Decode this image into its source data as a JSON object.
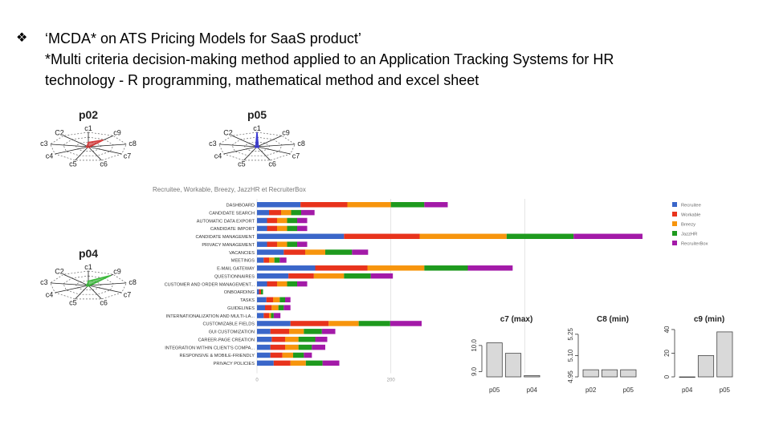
{
  "slide": {
    "bullet": "❖",
    "title_line": "‘MCDA* on ATS Pricing Models for SaaS product’",
    "note_line1": "*Multi criteria decision-making method applied to an Application Tracking Systems for HR",
    "note_line2": "technology - R programming, mathematical method and excel sheet"
  },
  "colors": {
    "Recruitee": "#3a66c9",
    "Workable": "#e8331c",
    "Breezy": "#f7950d",
    "JazzHR": "#1e9a1e",
    "RecruiterBox": "#a31aa8"
  },
  "chart_data": [
    {
      "type": "radar",
      "title": "p02",
      "axes": [
        "c1",
        "c9",
        "c8",
        "c7",
        "c6",
        "c5",
        "c4",
        "c3",
        "c2"
      ],
      "axis_label_text": [
        "c1",
        "c9",
        "c8",
        "c7",
        "c6",
        "c5",
        "c4",
        "c3",
        "C2"
      ],
      "values": [
        0.3,
        0.6,
        0.05,
        0.05,
        0.05,
        0.05,
        0.05,
        0.05,
        0.05
      ],
      "color": "#d43a3a"
    },
    {
      "type": "radar",
      "title": "p05",
      "axes": [
        "c1",
        "c9",
        "c8",
        "c7",
        "c6",
        "c5",
        "c4",
        "c3",
        "c2"
      ],
      "axis_label_text": [
        "c1",
        "c9",
        "c8",
        "c7",
        "c6",
        "c5",
        "c4",
        "c3",
        "C2"
      ],
      "values": [
        1.0,
        0.05,
        0.05,
        0.05,
        0.05,
        0.05,
        0.05,
        0.05,
        0.05
      ],
      "color": "#3a3ad4"
    },
    {
      "type": "radar",
      "title": "p04",
      "axes": [
        "c1",
        "c9",
        "c8",
        "c7",
        "c6",
        "c5",
        "c4",
        "c3",
        "c2"
      ],
      "axis_label_text": [
        "c1",
        "c9",
        "c8",
        "c7",
        "c6",
        "c5",
        "c4",
        "c3",
        "C2"
      ],
      "values": [
        0.3,
        0.9,
        0.05,
        0.05,
        0.05,
        0.05,
        0.05,
        0.05,
        0.05
      ],
      "color": "#3cb83c"
    },
    {
      "type": "bar",
      "orientation": "horizontal",
      "stacked": true,
      "title": "Recruitee, Workable, Breezy, JazzHR et RecruiterBox",
      "categories": [
        "DASHBOARD",
        "CANDIDATE SEARCH",
        "AUTOMATIC DATA EXPORT",
        "CANDIDATE IMPORT",
        "CANDIDATE MANAGEMENT",
        "PRIVACY MANAGEMENT",
        "VACANCIES",
        "MEETINGS",
        "E-MAIL GATEWAY",
        "QUESTIONNAIRES",
        "CUSTOMER AND ORDER MANAGEMENT...",
        "ONBOARDING",
        "TASKS",
        "GUIDELINES",
        "INTERNATIONALIZATION AND MULTI-LA...",
        "CUSTOMIZABLE FIELDS",
        "GUI CUSTOMIZATION",
        "CAREER-PAGE CREATION",
        "INTEGRATION WITHIN CLIENT'S COMPA...",
        "RESPONSIVE & MOBILE-FRIENDLY",
        "PRIVACY POLICIES"
      ],
      "series": [
        {
          "name": "Recruitee",
          "values": [
            65,
            18,
            15,
            15,
            130,
            15,
            40,
            10,
            87,
            47,
            15,
            3,
            14,
            12,
            10,
            50,
            20,
            22,
            20,
            20,
            25
          ]
        },
        {
          "name": "Workable",
          "values": [
            70,
            18,
            15,
            15,
            113,
            15,
            32,
            8,
            78,
            38,
            15,
            3,
            10,
            10,
            8,
            57,
            28,
            20,
            22,
            18,
            25
          ]
        },
        {
          "name": "Breezy",
          "values": [
            65,
            15,
            15,
            15,
            130,
            15,
            30,
            8,
            85,
            45,
            15,
            0,
            10,
            10,
            3,
            45,
            22,
            20,
            20,
            16,
            23
          ]
        },
        {
          "name": "JazzHR",
          "values": [
            50,
            15,
            15,
            15,
            100,
            15,
            40,
            8,
            65,
            40,
            15,
            3,
            8,
            8,
            4,
            47,
            27,
            25,
            20,
            16,
            25
          ]
        },
        {
          "name": "RecruiterBox",
          "values": [
            35,
            20,
            15,
            15,
            103,
            15,
            24,
            10,
            67,
            33,
            15,
            0,
            8,
            10,
            10,
            47,
            20,
            18,
            20,
            12,
            25
          ]
        }
      ],
      "x_ticks": [
        "0",
        "200"
      ],
      "xlim": [
        0,
        600
      ],
      "legend": "right"
    },
    {
      "type": "bar",
      "title": "c7 (max)",
      "values": [
        10.1,
        9.7,
        8.85
      ],
      "x_tick_labels": [
        "p05",
        "p04"
      ],
      "y_ticks": [
        9.0,
        10.0
      ],
      "y_tick_labels": [
        "9.0",
        "10.0"
      ],
      "ylim": [
        8.8,
        10.7
      ]
    },
    {
      "type": "bar",
      "title": "C8 (min)",
      "values": [
        5.0,
        5.0,
        5.0
      ],
      "x_tick_labels": [
        "p02",
        "p05"
      ],
      "y_ticks": [
        4.95,
        5.1,
        5.25
      ],
      "y_tick_labels": [
        "4.95",
        "5.10",
        "5.25"
      ],
      "ylim": [
        4.95,
        5.3
      ]
    },
    {
      "type": "bar",
      "title": "c9 (min)",
      "values": [
        0,
        18,
        38
      ],
      "x_tick_labels": [
        "p04",
        "p05"
      ],
      "y_ticks": [
        0,
        20,
        40
      ],
      "y_tick_labels": [
        "0",
        "20",
        "40"
      ],
      "ylim": [
        0,
        42
      ]
    }
  ]
}
